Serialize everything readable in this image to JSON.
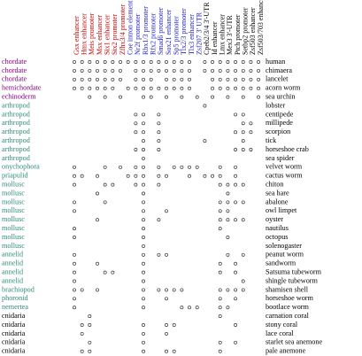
{
  "columns": [
    {
      "label": "Gsx enhancer",
      "color": "#cc0000"
    },
    {
      "label": "Hmx enhancer",
      "color": "#cc0000"
    },
    {
      "label": "Meis promoter",
      "color": "#cc0000"
    },
    {
      "label": "Msx enhancer",
      "color": "#cc0000"
    },
    {
      "label": "Six1 enhancer",
      "color": "#cc0000"
    },
    {
      "label": "Six2 promoter",
      "color": "#cc0000"
    },
    {
      "label": "Zfhx3/4 promoter",
      "color": "#cc0000"
    },
    {
      "label": "Coe intron element",
      "color": "#2222cc"
    },
    {
      "label": "Nr2f promoter",
      "color": "#2222cc"
    },
    {
      "label": "Rbx1/3 promoter",
      "color": "#2222cc"
    },
    {
      "label": "Rfx2 promoter",
      "color": "#2222cc"
    },
    {
      "label": "Smad6 promoter",
      "color": "#2222cc"
    },
    {
      "label": "Sox21 enhancer",
      "color": "#2222cc"
    },
    {
      "label": "Sp5 promoter",
      "color": "#2222cc"
    },
    {
      "label": "Tlx2/3 promoter",
      "color": "#2222cc"
    },
    {
      "label": "Tlx3 enhancer",
      "color": "#2222cc"
    },
    {
      "label": "Zsf207 3' UTR",
      "color": "#2222cc"
    },
    {
      "label": "Cpeb2/3/4 3'-UTR",
      "color": "#000000"
    },
    {
      "label": "Id enhancer",
      "color": "#000000"
    },
    {
      "label": "Lmx enhancer",
      "color": "#000000"
    },
    {
      "label": "Mex3 3'-UTR",
      "color": "#000000"
    },
    {
      "label": "Ptch promoter",
      "color": "#000000"
    },
    {
      "label": "Setbp2 promoter",
      "color": "#000000"
    },
    {
      "label": "Zsf503 enhancer",
      "color": "#000000"
    },
    {
      "label": "Zsf503/703 enhancer",
      "color": "#000000"
    }
  ],
  "rows": [
    {
      "phylum": "chordate",
      "species": "human",
      "color": "#800080",
      "dots": [
        0,
        1,
        2,
        3,
        4,
        5,
        6,
        7,
        8,
        9,
        10,
        11,
        12,
        13,
        14,
        15,
        17,
        18,
        19,
        20,
        21,
        22,
        23,
        24
      ]
    },
    {
      "phylum": "chordate",
      "species": "chimaera",
      "color": "#800080",
      "dots": [
        0,
        1,
        2,
        3,
        4,
        5,
        6,
        8,
        9,
        10,
        11,
        12,
        13,
        14,
        15,
        17,
        18,
        19,
        20,
        21,
        22,
        23,
        24
      ]
    },
    {
      "phylum": "chordate",
      "species": "lancelet",
      "color": "#800080",
      "dots": [
        0,
        1,
        2,
        3,
        4,
        5,
        6,
        8,
        9,
        10,
        12,
        13,
        14,
        15,
        18,
        19,
        20,
        21,
        22,
        23,
        24
      ]
    },
    {
      "phylum": "hemichordate",
      "species": "acorn worm",
      "color": "#800080",
      "dots": [
        0,
        1,
        2,
        3,
        4,
        5,
        7,
        8,
        9,
        10,
        11,
        12,
        13,
        14,
        15,
        18,
        19,
        20,
        21,
        22,
        23,
        24
      ]
    },
    {
      "phylum": "echinoderm",
      "species": "sea urchin",
      "color": "#800080",
      "dots": [
        2,
        4,
        6,
        9,
        10,
        12,
        14,
        16,
        18,
        20,
        22,
        24
      ]
    },
    {
      "phylum": "arthropod",
      "species": "lobster",
      "color": "#2e8b7a",
      "dots": [
        17
      ]
    },
    {
      "phylum": "arthropod",
      "species": "centipede",
      "color": "#2e8b7a",
      "dots": [
        8,
        9,
        11,
        21,
        22
      ]
    },
    {
      "phylum": "arthropod",
      "species": "millipede",
      "color": "#2e8b7a",
      "dots": [
        8,
        9,
        11,
        22,
        23
      ]
    },
    {
      "phylum": "arthropod",
      "species": "scorpion",
      "color": "#2e8b7a",
      "dots": [
        8,
        9,
        11,
        21,
        22,
        23
      ]
    },
    {
      "phylum": "arthropod",
      "species": "tick",
      "color": "#2e8b7a",
      "dots": [
        9,
        11,
        17,
        22
      ]
    },
    {
      "phylum": "arthropod",
      "species": "horseshoe crab",
      "color": "#2e8b7a",
      "dots": [
        8,
        9,
        11,
        21,
        22,
        23
      ]
    },
    {
      "phylum": "arthropod",
      "species": "sea spider",
      "color": "#2e8b7a",
      "dots": [
        9
      ]
    },
    {
      "phylum": "onychophora",
      "species": "velvet worm",
      "color": "#2e8b7a",
      "dots": [
        0,
        4,
        6,
        8,
        9,
        11,
        13,
        14,
        15,
        16,
        19,
        21
      ]
    },
    {
      "phylum": "priapulid",
      "species": "cactus worm",
      "color": "#2e8b7a",
      "dots": [
        0,
        1,
        3,
        7,
        8,
        9,
        11,
        12,
        15,
        17,
        18,
        19,
        21
      ]
    },
    {
      "phylum": "mollusc",
      "species": "chiton",
      "color": "#2e8b7a",
      "dots": [
        0,
        4,
        5,
        8,
        9,
        11,
        19,
        20,
        21,
        22
      ]
    },
    {
      "phylum": "mollusc",
      "species": "sea hare",
      "color": "#2e8b7a",
      "dots": [
        3,
        9,
        20
      ]
    },
    {
      "phylum": "mollusc",
      "species": "abalone",
      "color": "#2e8b7a",
      "dots": [
        0,
        4,
        9,
        19,
        20,
        21,
        22
      ]
    },
    {
      "phylum": "mollusc",
      "species": "owl limpet",
      "color": "#2e8b7a",
      "dots": [
        0,
        9,
        12,
        19,
        20
      ]
    },
    {
      "phylum": "mollusc",
      "species": "oyster",
      "color": "#2e8b7a",
      "dots": [
        3,
        9,
        11,
        19,
        20,
        21,
        22
      ]
    },
    {
      "phylum": "mollusc",
      "species": "nautilus",
      "color": "#2e8b7a",
      "dots": [
        0,
        9,
        19
      ]
    },
    {
      "phylum": "mollusc",
      "species": "octopus",
      "color": "#2e8b7a",
      "dots": [
        0,
        9,
        20
      ]
    },
    {
      "phylum": "mollusc",
      "species": "solenogaster",
      "color": "#2e8b7a",
      "dots": [
        9
      ]
    },
    {
      "phylum": "annelid",
      "species": "peanut worm",
      "color": "#2e8b7a",
      "dots": [
        0,
        9,
        11,
        12,
        20,
        22
      ]
    },
    {
      "phylum": "annelid",
      "species": "sandworm",
      "color": "#2e8b7a",
      "dots": [
        0,
        3,
        9,
        19,
        21
      ]
    },
    {
      "phylum": "annelid",
      "species": "Satsuma tubeworm",
      "color": "#2e8b7a",
      "dots": [
        0,
        4,
        5,
        9,
        19,
        21
      ]
    },
    {
      "phylum": "annelid",
      "species": "shingle tubeworm",
      "color": "#2e8b7a",
      "dots": [
        0,
        9,
        22
      ]
    },
    {
      "phylum": "brachiopod",
      "species": "shamisen shell",
      "color": "#2e8b7a",
      "dots": [
        0,
        1,
        3,
        9,
        11,
        12,
        13,
        14,
        19,
        20,
        21,
        22
      ]
    },
    {
      "phylum": "phoronid",
      "species": "horseshoe worm",
      "color": "#2e8b7a",
      "dots": [
        0,
        9,
        12,
        19,
        21
      ]
    },
    {
      "phylum": "nemertea",
      "species": "bootlace worm",
      "color": "#2e8b7a",
      "dots": [
        0,
        9,
        14,
        15,
        16,
        19,
        20
      ]
    },
    {
      "phylum": "cnidaria",
      "species": "carnation coral",
      "color": "#000000",
      "dots": [
        2,
        19
      ]
    },
    {
      "phylum": "cnidaria",
      "species": "stony coral",
      "color": "#000000",
      "dots": [
        1,
        2,
        9,
        12,
        13,
        21
      ]
    },
    {
      "phylum": "cnidaria",
      "species": "lace coral",
      "color": "#000000",
      "dots": [
        1,
        9,
        12
      ]
    },
    {
      "phylum": "cnidaria",
      "species": "starlet sea anemone",
      "color": "#000000",
      "dots": [
        2,
        9,
        19,
        21
      ]
    },
    {
      "phylum": "cnidaria",
      "species": "pale anemone",
      "color": "#000000",
      "dots": [
        1,
        2,
        9,
        12,
        13,
        19
      ]
    }
  ]
}
